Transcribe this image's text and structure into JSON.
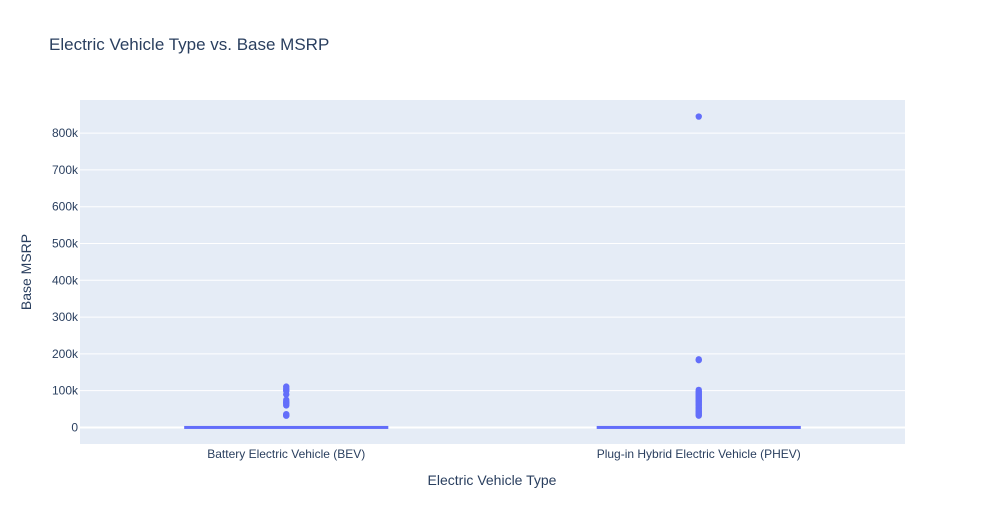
{
  "chart_data": {
    "type": "box",
    "title": "Electric Vehicle Type vs. Base MSRP",
    "xlabel": "Electric Vehicle Type",
    "ylabel": "Base MSRP",
    "categories": [
      "Battery Electric Vehicle (BEV)",
      "Plug-in Hybrid Electric Vehicle (PHEV)"
    ],
    "ylim": [
      -45000,
      890000
    ],
    "yticks": [
      0,
      100000,
      200000,
      300000,
      400000,
      500000,
      600000,
      700000,
      800000
    ],
    "ytick_labels": [
      "0",
      "100k",
      "200k",
      "300k",
      "400k",
      "500k",
      "600k",
      "700k",
      "800k"
    ],
    "grid": true,
    "boxes": [
      {
        "category": "Battery Electric Vehicle (BEV)",
        "q1": 0,
        "median": 0,
        "q3": 0,
        "lowerfence": 0,
        "upperfence": 0,
        "outliers": [
          31950,
          33000,
          34000,
          36000,
          59900,
          64000,
          67000,
          69900,
          75000,
          90000,
          98950,
          102000,
          106000,
          110950
        ]
      },
      {
        "category": "Plug-in Hybrid Electric Vehicle (PHEV)",
        "q1": 0,
        "median": 0,
        "q3": 0,
        "lowerfence": 0,
        "upperfence": 0,
        "outliers": [
          32000,
          36000,
          39000,
          42000,
          45000,
          48000,
          52000,
          55000,
          59000,
          62000,
          66000,
          69000,
          72000,
          75000,
          78000,
          81000,
          84000,
          88000,
          91000,
          95000,
          98000,
          102000,
          183000,
          185000,
          845000
        ]
      }
    ],
    "colors": {
      "marker": "#636efa",
      "plot_bg": "#e5ecf6",
      "grid": "#ffffff",
      "text": "#2a3f5f"
    }
  }
}
